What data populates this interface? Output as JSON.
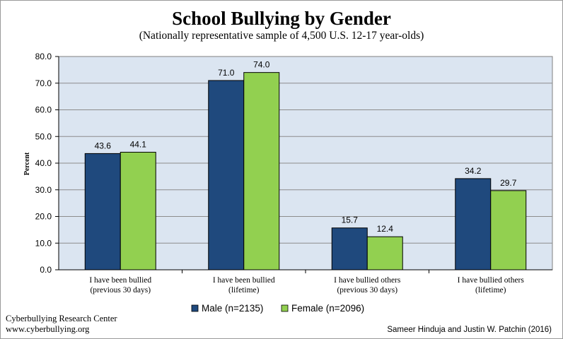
{
  "chart_data": {
    "type": "bar",
    "title": "School Bullying by Gender",
    "subtitle": "(Nationally representative sample of 4,500 U.S. 12-17 year-olds)",
    "ylabel": "Percent",
    "xlabel": "",
    "ylim": [
      0,
      80
    ],
    "ytick_step": 10,
    "ytick_labels": [
      "0.0",
      "10.0",
      "20.0",
      "30.0",
      "40.0",
      "50.0",
      "60.0",
      "70.0",
      "80.0"
    ],
    "grid": true,
    "legend_position": "bottom-center",
    "categories": [
      [
        "I have been bullied",
        "(previous 30 days)"
      ],
      [
        "I have been bullied",
        "(lifetime)"
      ],
      [
        "I have bullied others",
        "(previous 30 days)"
      ],
      [
        "I have bullied others",
        "(lifetime)"
      ]
    ],
    "series": [
      {
        "name": "Male (n=2135)",
        "color": "#1f497d",
        "values": [
          43.6,
          71.0,
          15.7,
          34.2
        ],
        "labels": [
          "43.6",
          "71.0",
          "15.7",
          "34.2"
        ]
      },
      {
        "name": "Female (n=2096)",
        "color": "#92d050",
        "values": [
          44.1,
          74.0,
          12.4,
          29.7
        ],
        "labels": [
          "44.1",
          "74.0",
          "12.4",
          "29.7"
        ]
      }
    ],
    "plot_background": "#dbe5f1"
  },
  "footer": {
    "org": "Cyberbullying Research Center",
    "url": "www.cyberbullying.org",
    "credit": "Sameer Hinduja and Justin W. Patchin (2016)"
  }
}
